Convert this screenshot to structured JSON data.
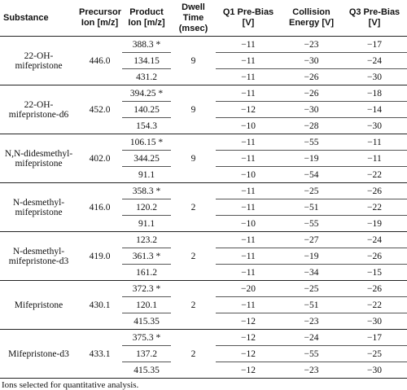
{
  "table": {
    "header": [
      "Substance",
      "Precursor Ion [m/z]",
      "Product Ion [m/z]",
      "Dwell Time (msec)",
      "Q1 Pre-Bias [V]",
      "Collision Energy [V]",
      "Q3 Pre-Bias [V]"
    ],
    "groups": [
      {
        "substance": "22-OH-mifepristone",
        "precursor": "446.0",
        "dwell": "9",
        "transitions": [
          [
            "388.3 *",
            "−11",
            "−23",
            "−17"
          ],
          [
            "134.15",
            "−11",
            "−30",
            "−24"
          ],
          [
            "431.2",
            "−11",
            "−26",
            "−30"
          ]
        ]
      },
      {
        "substance": "22-OH-mifepristone-d6",
        "precursor": "452.0",
        "dwell": "9",
        "transitions": [
          [
            "394.25 *",
            "−11",
            "−26",
            "−18"
          ],
          [
            "140.25",
            "−12",
            "−30",
            "−14"
          ],
          [
            "154.3",
            "−10",
            "−28",
            "−30"
          ]
        ]
      },
      {
        "substance": "N,N-didesmethyl-mifepristone",
        "precursor": "402.0",
        "dwell": "9",
        "transitions": [
          [
            "106.15 *",
            "−11",
            "−55",
            "−11"
          ],
          [
            "344.25",
            "−11",
            "−19",
            "−11"
          ],
          [
            "91.1",
            "−10",
            "−54",
            "−22"
          ]
        ]
      },
      {
        "substance": "N-desmethyl-mifepristone",
        "precursor": "416.0",
        "dwell": "2",
        "transitions": [
          [
            "358.3 *",
            "−11",
            "−25",
            "−26"
          ],
          [
            "120.2",
            "−11",
            "−51",
            "−22"
          ],
          [
            "91.1",
            "−10",
            "−55",
            "−19"
          ]
        ]
      },
      {
        "substance": "N-desmethyl-mifepristone-d3",
        "precursor": "419.0",
        "dwell": "2",
        "transitions": [
          [
            "123.2",
            "−11",
            "−27",
            "−24"
          ],
          [
            "361.3 *",
            "−11",
            "−19",
            "−26"
          ],
          [
            "161.2",
            "−11",
            "−34",
            "−15"
          ]
        ]
      },
      {
        "substance": "Mifepristone",
        "precursor": "430.1",
        "dwell": "2",
        "transitions": [
          [
            "372.3 *",
            "−20",
            "−25",
            "−26"
          ],
          [
            "120.1",
            "−11",
            "−51",
            "−22"
          ],
          [
            "415.35",
            "−12",
            "−23",
            "−30"
          ]
        ]
      },
      {
        "substance": "Mifepristone-d3",
        "precursor": "433.1",
        "dwell": "2",
        "transitions": [
          [
            "375.3 *",
            "−12",
            "−24",
            "−17"
          ],
          [
            "137.2",
            "−12",
            "−55",
            "−25"
          ],
          [
            "415.35",
            "−12",
            "−23",
            "−30"
          ]
        ]
      }
    ],
    "footnote": "Ions selected for quantitative analysis."
  }
}
